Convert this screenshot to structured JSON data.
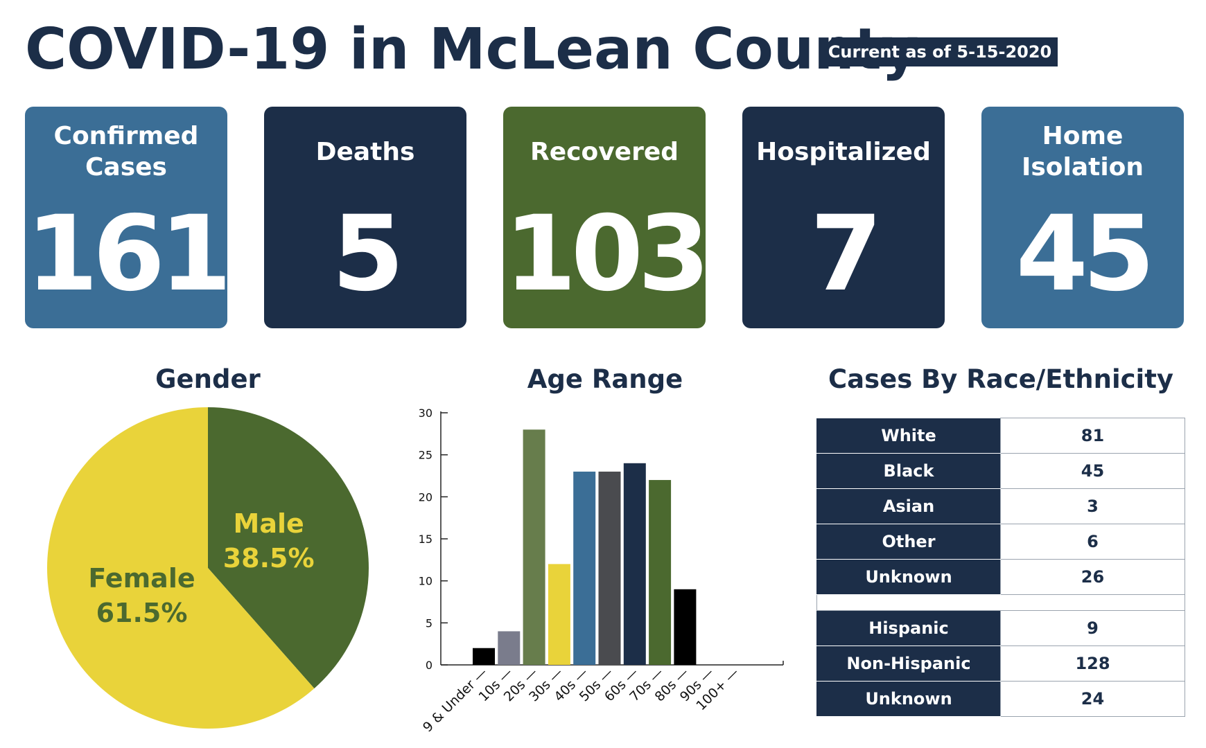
{
  "header": {
    "title": "COVID-19 in McLean County",
    "date_badge": "Current as of 5-15-2020"
  },
  "stats": [
    {
      "label": "Confirmed Cases",
      "value": "161",
      "color": "#3b6e96"
    },
    {
      "label": "Deaths",
      "value": "5",
      "color": "#1c2e48"
    },
    {
      "label": "Recovered",
      "value": "103",
      "color": "#4b692f"
    },
    {
      "label": "Hospitalized",
      "value": "7",
      "color": "#1c2e48"
    },
    {
      "label": "Home Isolation",
      "value": "45",
      "color": "#3b6e96"
    }
  ],
  "chart_data": [
    {
      "type": "pie",
      "title": "Gender",
      "slices": [
        {
          "name": "Male",
          "label": "38.5%",
          "value": 38.5,
          "color": "#4b692f",
          "text_color": "#e9d33a"
        },
        {
          "name": "Female",
          "label": "61.5%",
          "value": 61.5,
          "color": "#e9d33a",
          "text_color": "#4b692f"
        }
      ]
    },
    {
      "type": "bar",
      "title": "Age Range",
      "categories": [
        "9 & Under",
        "10s",
        "20s",
        "30s",
        "40s",
        "50s",
        "60s",
        "70s",
        "80s",
        "90s",
        "100+"
      ],
      "values": [
        2,
        4,
        28,
        12,
        23,
        23,
        24,
        22,
        9,
        0,
        0
      ],
      "colors": [
        "#000000",
        "#7a7c8c",
        "#677d4c",
        "#e9d33a",
        "#3b6e96",
        "#4a4b4f",
        "#1c2e48",
        "#4b692f",
        "#000000",
        "#000000",
        "#000000"
      ],
      "yticks": [
        0,
        5,
        10,
        15,
        20,
        25,
        30
      ],
      "ylim": [
        0,
        30
      ]
    },
    {
      "type": "table",
      "title": "Cases By Race/Ethnicity",
      "race": [
        {
          "label": "White",
          "value": "81"
        },
        {
          "label": "Black",
          "value": "45"
        },
        {
          "label": "Asian",
          "value": "3"
        },
        {
          "label": "Other",
          "value": "6"
        },
        {
          "label": "Unknown",
          "value": "26"
        }
      ],
      "ethnicity": [
        {
          "label": "Hispanic",
          "value": "9"
        },
        {
          "label": "Non-Hispanic",
          "value": "128"
        },
        {
          "label": "Unknown",
          "value": "24"
        }
      ]
    }
  ]
}
